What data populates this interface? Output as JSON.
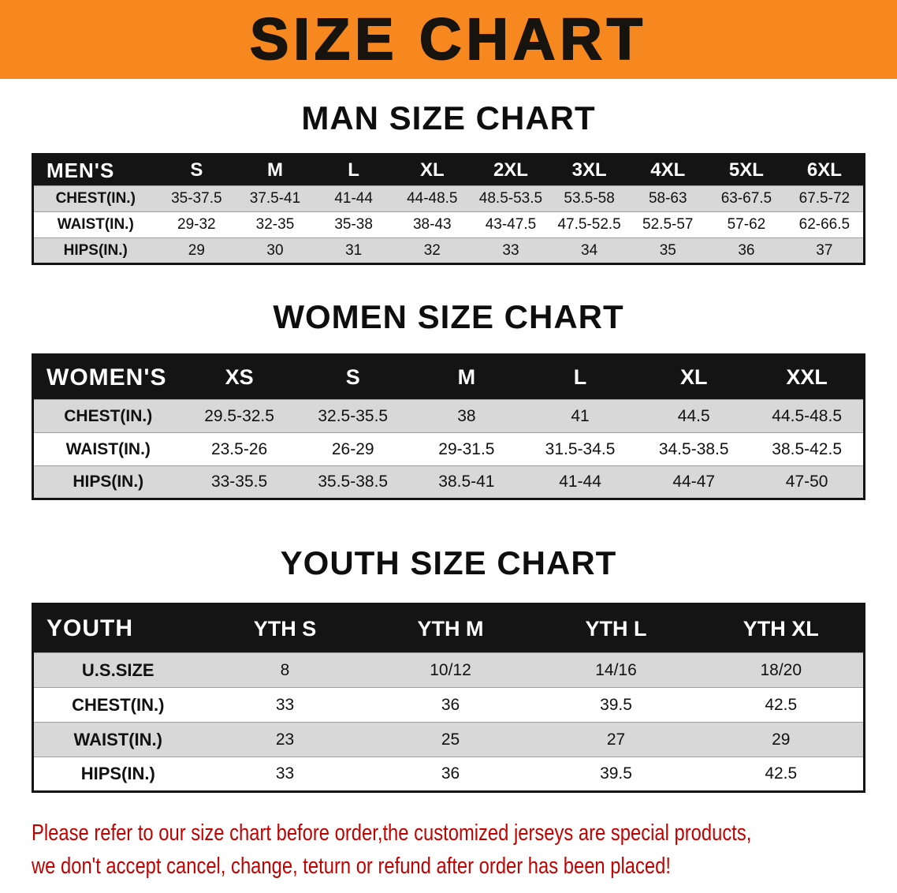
{
  "banner": {
    "title": "SIZE CHART"
  },
  "colors": {
    "banner_bg": "#F6881F",
    "table_header_bg": "#141414",
    "row_alt_bg": "#D8D8D8",
    "disclaimer_text": "#C10000"
  },
  "chart_data": [
    {
      "type": "table",
      "title": "MAN SIZE CHART",
      "header_label": "MEN'S",
      "columns": [
        "S",
        "M",
        "L",
        "XL",
        "2XL",
        "3XL",
        "4XL",
        "5XL",
        "6XL"
      ],
      "rows": [
        {
          "label": "CHEST(IN.)",
          "values": [
            "35-37.5",
            "37.5-41",
            "41-44",
            "44-48.5",
            "48.5-53.5",
            "53.5-58",
            "58-63",
            "63-67.5",
            "67.5-72"
          ]
        },
        {
          "label": "WAIST(IN.)",
          "values": [
            "29-32",
            "32-35",
            "35-38",
            "38-43",
            "43-47.5",
            "47.5-52.5",
            "52.5-57",
            "57-62",
            "62-66.5"
          ]
        },
        {
          "label": "HIPS(IN.)",
          "values": [
            "29",
            "30",
            "31",
            "32",
            "33",
            "34",
            "35",
            "36",
            "37"
          ]
        }
      ]
    },
    {
      "type": "table",
      "title": "WOMEN SIZE CHART",
      "header_label": "WOMEN'S",
      "columns": [
        "XS",
        "S",
        "M",
        "L",
        "XL",
        "XXL"
      ],
      "rows": [
        {
          "label": "CHEST(IN.)",
          "values": [
            "29.5-32.5",
            "32.5-35.5",
            "38",
            "41",
            "44.5",
            "44.5-48.5"
          ]
        },
        {
          "label": "WAIST(IN.)",
          "values": [
            "23.5-26",
            "26-29",
            "29-31.5",
            "31.5-34.5",
            "34.5-38.5",
            "38.5-42.5"
          ]
        },
        {
          "label": "HIPS(IN.)",
          "values": [
            "33-35.5",
            "35.5-38.5",
            "38.5-41",
            "41-44",
            "44-47",
            "47-50"
          ]
        }
      ]
    },
    {
      "type": "table",
      "title": "YOUTH SIZE CHART",
      "header_label": "YOUTH",
      "columns": [
        "YTH S",
        "YTH M",
        "YTH L",
        "YTH XL"
      ],
      "rows": [
        {
          "label": "U.S.SIZE",
          "values": [
            "8",
            "10/12",
            "14/16",
            "18/20"
          ]
        },
        {
          "label": "CHEST(IN.)",
          "values": [
            "33",
            "36",
            "39.5",
            "42.5"
          ]
        },
        {
          "label": "WAIST(IN.)",
          "values": [
            "23",
            "25",
            "27",
            "29"
          ]
        },
        {
          "label": "HIPS(IN.)",
          "values": [
            "33",
            "36",
            "39.5",
            "42.5"
          ]
        }
      ]
    }
  ],
  "disclaimer": {
    "line1": "Please refer to our size chart before order,the customized jerseys are special products,",
    "line2": "we don't accept cancel, change, teturn or refund after order has been placed!"
  }
}
